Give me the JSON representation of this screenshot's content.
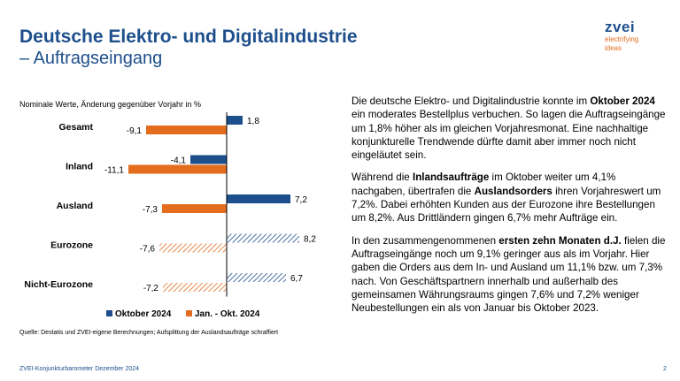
{
  "header": {
    "title_line1": "Deutsche Elektro- und Digitalindustrie",
    "title_line2": "– Auftragseingang"
  },
  "logo": {
    "name": "zvei",
    "tagline_line1": "electrifying",
    "tagline_line2": "ideas"
  },
  "chart_subtitle": "Nominale Werte, Änderung gegenüber Vorjahr in %",
  "chart_data": {
    "type": "bar",
    "orientation": "horizontal",
    "categories": [
      "Gesamt",
      "Inland",
      "Ausland",
      "Eurozone",
      "Nicht-Eurozone"
    ],
    "series": [
      {
        "name": "Oktober 2024",
        "values": [
          1.8,
          -4.1,
          7.2,
          8.2,
          6.7
        ],
        "value_labels": [
          "1,8",
          "-4,1",
          "7,2",
          "8,2",
          "6,7"
        ],
        "color": "#1d4f8c",
        "hatched": [
          false,
          false,
          false,
          true,
          true
        ]
      },
      {
        "name": "Jan. - Okt. 2024",
        "values": [
          -9.1,
          -11.1,
          -7.3,
          -7.6,
          -7.2
        ],
        "value_labels": [
          "-9,1",
          "-11,1",
          "-7,3",
          "-7,6",
          "-7,2"
        ],
        "color": "#e36c1d",
        "hatched": [
          false,
          false,
          false,
          true,
          true
        ]
      }
    ],
    "xlim": [
      -12,
      9
    ],
    "legend_position": "bottom",
    "grid": false
  },
  "source_note": "Quelle: Destatis und ZVEI-eigene Berechnungen; Aufsplittung der Auslandsaufträge schraffiert",
  "text": {
    "p1": [
      {
        "t": "Die deutsche Elektro- und Digitalindustrie konnte im ",
        "b": false
      },
      {
        "t": "Oktober 2024",
        "b": true
      },
      {
        "t": " ein moderates Bestellplus verbuchen. So lagen die Auftragseingänge um 1,8% höher als im gleichen Vorjahresmonat. Eine nachhaltige konjunkturelle Trendwende dürfte damit aber immer noch nicht eingeläutet sein.",
        "b": false
      }
    ],
    "p2": [
      {
        "t": "Während die ",
        "b": false
      },
      {
        "t": "Inlandsaufträge",
        "b": true
      },
      {
        "t": " im Oktober weiter um 4,1% nachgaben, übertrafen die ",
        "b": false
      },
      {
        "t": "Auslandsorders",
        "b": true
      },
      {
        "t": " ihren Vorjahreswert um 7,2%. Dabei erhöhten Kunden aus der Eurozone ihre Bestellungen um 8,2%. Aus Drittländern gingen 6,7% mehr Aufträge ein.",
        "b": false
      }
    ],
    "p3": [
      {
        "t": "In den zusammengenommenen ",
        "b": false
      },
      {
        "t": "ersten zehn Monaten d.J.",
        "b": true
      },
      {
        "t": " fielen die Auftragseingänge noch um 9,1% geringer aus als im Vorjahr. Hier gaben die Orders aus dem In- und Ausland um 11,1% bzw. um 7,3% nach. Von Geschäftspartnern innerhalb und außerhalb des gemeinsamen Währungsraums gingen 7,6% und 7,2% weniger Neubestellungen ein als von Januar bis Oktober 2023.",
        "b": false
      }
    ]
  },
  "footer": {
    "left": "ZVEI-Konjunkturbarometer Dezember 2024",
    "page": "2"
  }
}
